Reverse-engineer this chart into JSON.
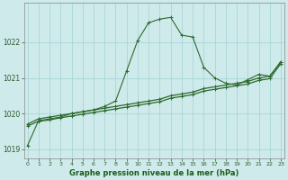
{
  "title": "Graphe pression niveau de la mer (hPa)",
  "background_color": "#ceeaea",
  "grid_color": "#a8d8d8",
  "line_color1": "#2d6a2d",
  "line_color2": "#2d6a2d",
  "line_color3": "#2d6a2d",
  "xlim": [
    -0.3,
    23.3
  ],
  "ylim": [
    1018.75,
    1023.1
  ],
  "yticks": [
    1019,
    1020,
    1021,
    1022
  ],
  "xticks": [
    0,
    1,
    2,
    3,
    4,
    5,
    6,
    7,
    8,
    9,
    10,
    11,
    12,
    13,
    14,
    15,
    16,
    17,
    18,
    19,
    20,
    21,
    22,
    23
  ],
  "series1": [
    1019.1,
    1019.8,
    1019.85,
    1019.9,
    1020.0,
    1020.05,
    1020.1,
    1020.2,
    1020.35,
    1021.2,
    1022.05,
    1022.55,
    1022.65,
    1022.7,
    1022.2,
    1022.15,
    1021.3,
    1021.0,
    1020.85,
    1020.8,
    1020.95,
    1021.1,
    1021.05,
    1021.45
  ],
  "series2": [
    1019.7,
    1019.85,
    1019.9,
    1019.95,
    1020.0,
    1020.05,
    1020.1,
    1020.15,
    1020.2,
    1020.25,
    1020.3,
    1020.35,
    1020.4,
    1020.5,
    1020.55,
    1020.6,
    1020.7,
    1020.75,
    1020.8,
    1020.85,
    1020.9,
    1021.0,
    1021.05,
    1021.45
  ],
  "series3": [
    1019.65,
    1019.78,
    1019.82,
    1019.88,
    1019.93,
    1019.98,
    1020.03,
    1020.08,
    1020.13,
    1020.18,
    1020.23,
    1020.28,
    1020.33,
    1020.43,
    1020.48,
    1020.53,
    1020.63,
    1020.68,
    1020.73,
    1020.78,
    1020.83,
    1020.93,
    1020.98,
    1021.4
  ]
}
